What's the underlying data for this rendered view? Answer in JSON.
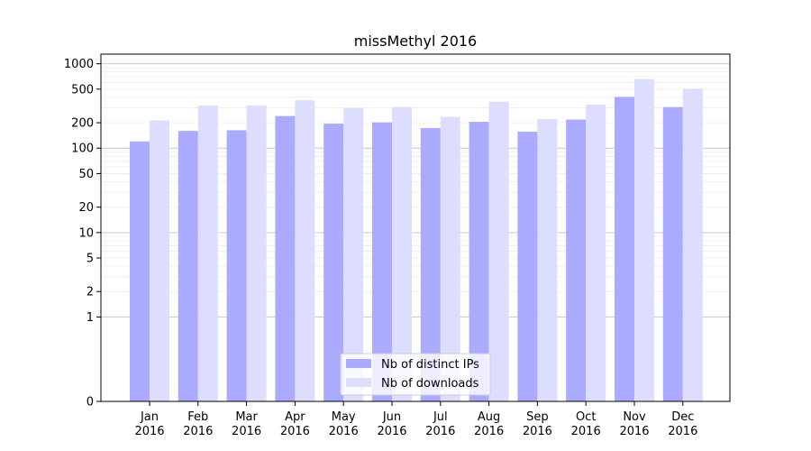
{
  "chart_data": {
    "type": "bar",
    "title": "missMethyl 2016",
    "xlabel": "",
    "ylabel": "",
    "yscale": "symlog",
    "ylim": [
      0,
      1300
    ],
    "yticks": [
      0,
      1,
      2,
      5,
      10,
      20,
      50,
      100,
      200,
      500,
      1000
    ],
    "grid": "horizontal",
    "legend_position": "bottom-center",
    "categories": [
      "Jan\n2016",
      "Feb\n2016",
      "Mar\n2016",
      "Apr\n2016",
      "May\n2016",
      "Jun\n2016",
      "Jul\n2016",
      "Aug\n2016",
      "Sep\n2016",
      "Oct\n2016",
      "Nov\n2016",
      "Dec\n2016"
    ],
    "series": [
      {
        "name": "Nb of distinct IPs",
        "color": "#aaaaff",
        "values": [
          120,
          160,
          163,
          240,
          195,
          202,
          173,
          205,
          157,
          218,
          405,
          307
        ]
      },
      {
        "name": "Nb of downloads",
        "color": "#ddddff",
        "values": [
          213,
          320,
          320,
          370,
          298,
          308,
          235,
          355,
          220,
          328,
          660,
          505
        ]
      }
    ]
  }
}
